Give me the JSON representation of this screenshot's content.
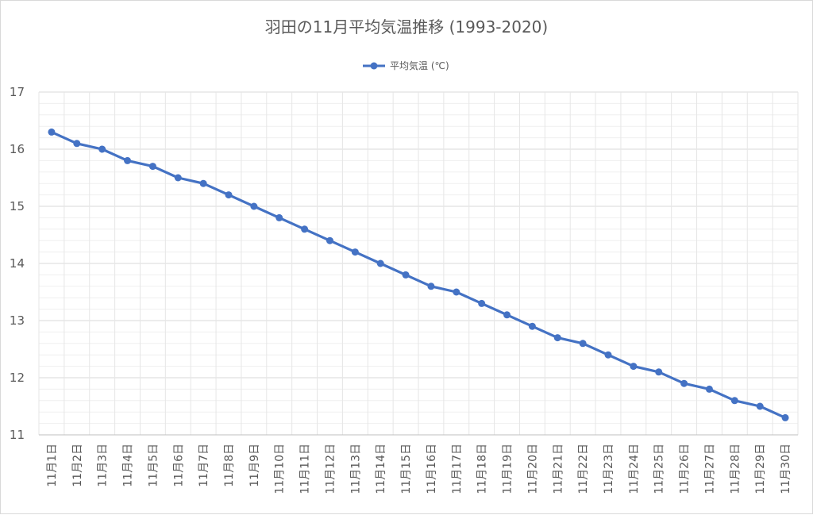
{
  "chart_data": {
    "type": "line",
    "title": "羽田の11月平均気温推移 (1993-2020)",
    "xlabel": "",
    "ylabel": "",
    "ylim": [
      11,
      17
    ],
    "yticks": [
      11,
      12,
      13,
      14,
      15,
      16,
      17
    ],
    "grid": true,
    "legend_position": "top",
    "categories": [
      "11月1日",
      "11月2日",
      "11月3日",
      "11月4日",
      "11月5日",
      "11月6日",
      "11月7日",
      "11月8日",
      "11月9日",
      "11月10日",
      "11月11日",
      "11月12日",
      "11月13日",
      "11月14日",
      "11月15日",
      "11月16日",
      "11月17日",
      "11月18日",
      "11月19日",
      "11月20日",
      "11月21日",
      "11月22日",
      "11月23日",
      "11月24日",
      "11月25日",
      "11月26日",
      "11月27日",
      "11月28日",
      "11月29日",
      "11月30日"
    ],
    "series": [
      {
        "name": "平均気温 (℃)",
        "color": "#4472c4",
        "values": [
          16.3,
          16.1,
          16.0,
          15.8,
          15.7,
          15.5,
          15.4,
          15.2,
          15.0,
          14.8,
          14.6,
          14.4,
          14.2,
          14.0,
          13.8,
          13.6,
          13.5,
          13.3,
          13.1,
          12.9,
          12.7,
          12.6,
          12.4,
          12.2,
          12.1,
          11.9,
          11.8,
          11.6,
          11.5,
          11.3
        ]
      }
    ]
  }
}
